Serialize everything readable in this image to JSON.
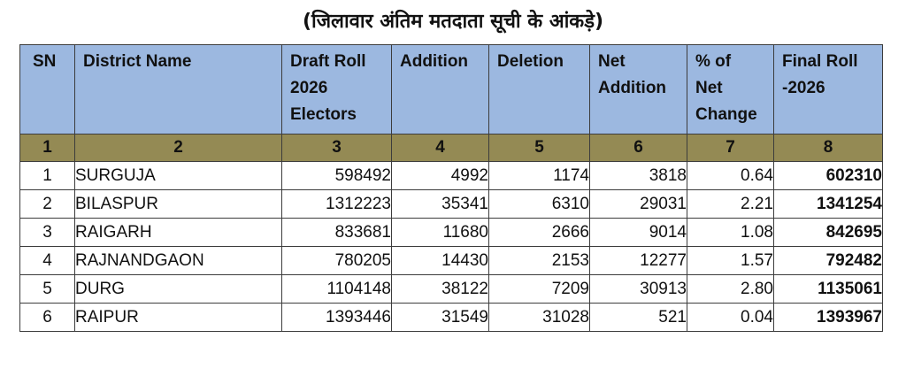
{
  "title": "(जिलावार अंतिम मतदाता सूची के आंकड़े)",
  "headers": {
    "sn": "SN",
    "district": "District Name",
    "draft": [
      "Draft Roll",
      "2026",
      "Electors"
    ],
    "addition": "Addition",
    "deletion": "Deletion",
    "net": [
      "Net",
      "Addition"
    ],
    "pct": [
      "% of",
      "Net",
      "Change"
    ],
    "final": [
      "Final Roll",
      "-2026"
    ]
  },
  "column_numbers": [
    "1",
    "2",
    "3",
    "4",
    "5",
    "6",
    "7",
    "8"
  ],
  "rows": [
    {
      "sn": "1",
      "district": "SURGUJA",
      "draft": "598492",
      "addition": "4992",
      "deletion": "1174",
      "net": "3818",
      "pct": "0.64",
      "final": "602310"
    },
    {
      "sn": "2",
      "district": "BILASPUR",
      "draft": "1312223",
      "addition": "35341",
      "deletion": "6310",
      "net": "29031",
      "pct": "2.21",
      "final": "1341254"
    },
    {
      "sn": "3",
      "district": "RAIGARH",
      "draft": "833681",
      "addition": "11680",
      "deletion": "2666",
      "net": "9014",
      "pct": "1.08",
      "final": "842695"
    },
    {
      "sn": "4",
      "district": "RAJNANDGAON",
      "draft": "780205",
      "addition": "14430",
      "deletion": "2153",
      "net": "12277",
      "pct": "1.57",
      "final": "792482"
    },
    {
      "sn": "5",
      "district": "DURG",
      "draft": "1104148",
      "addition": "38122",
      "deletion": "7209",
      "net": "30913",
      "pct": "2.80",
      "final": "1135061"
    },
    {
      "sn": "6",
      "district": "RAIPUR",
      "draft": "1393446",
      "addition": "31549",
      "deletion": "31028",
      "net": "521",
      "pct": "0.04",
      "final": "1393967"
    }
  ],
  "colors": {
    "header_bg": "#9cb8e0",
    "number_row_bg": "#948a54",
    "border": "#3c3c3c"
  }
}
